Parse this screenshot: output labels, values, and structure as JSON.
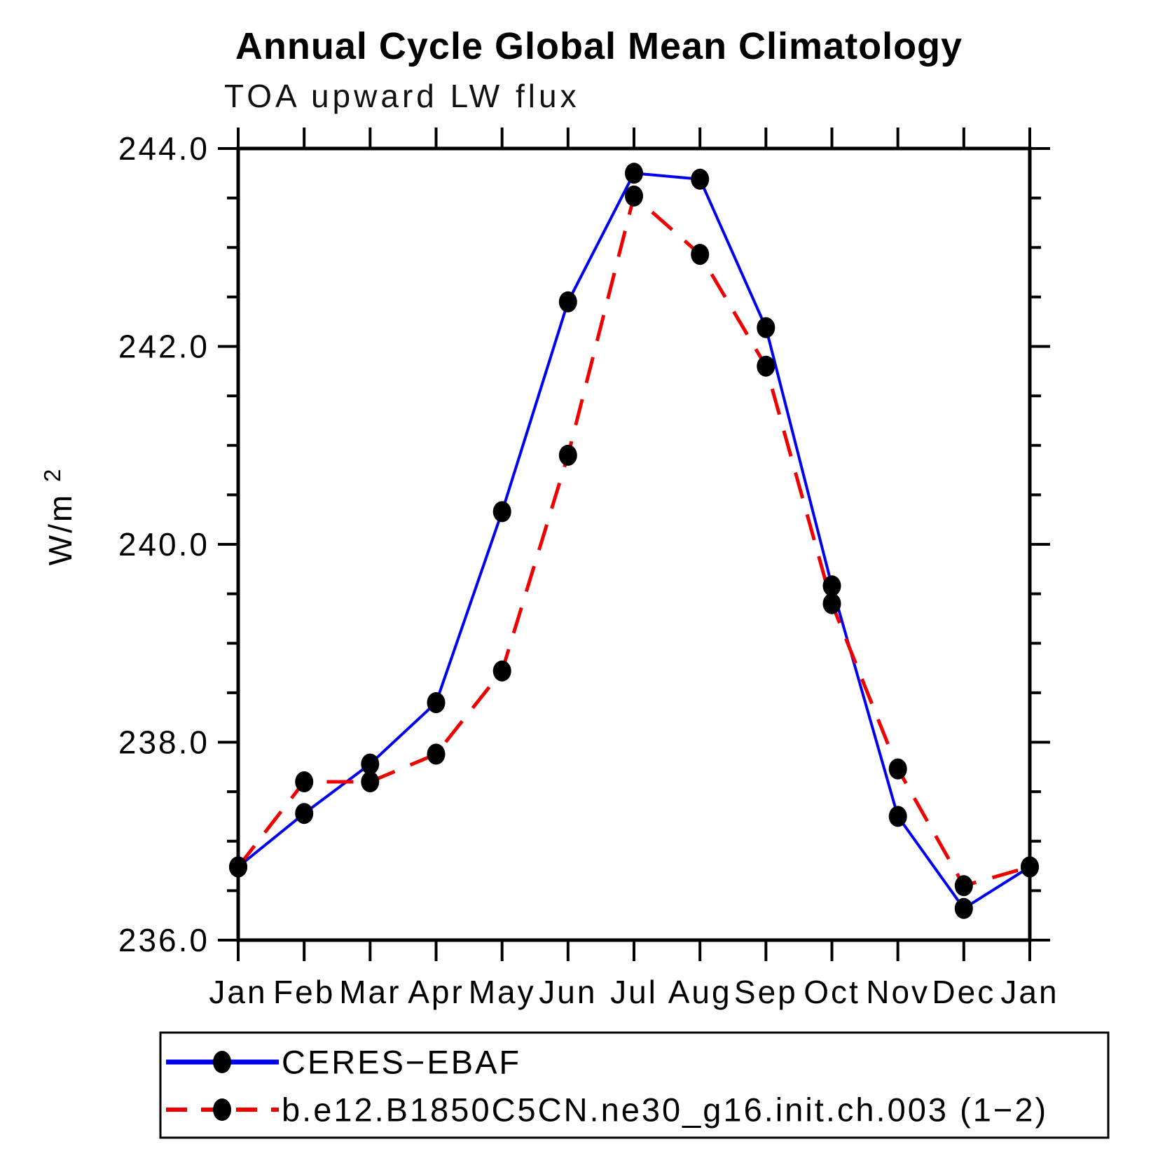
{
  "chart_data": {
    "type": "line",
    "title": "Annual Cycle Global Mean Climatology",
    "subtitle": "TOA upward LW flux",
    "ylabel_base": "W/m",
    "ylabel_exponent": "2",
    "categories": [
      "Jan",
      "Feb",
      "Mar",
      "Apr",
      "May",
      "Jun",
      "Jul",
      "Aug",
      "Sep",
      "Oct",
      "Nov",
      "Dec",
      "Jan"
    ],
    "ylim": [
      236.0,
      244.0
    ],
    "ytick_major_interval": 2.0,
    "ytick_minor_interval": 0.5,
    "ytick_labels": [
      "236.0",
      "238.0",
      "240.0",
      "242.0",
      "244.0"
    ],
    "grid": false,
    "legend_position": "bottom-left",
    "axis_color": "#000000",
    "marker_color": "#000000",
    "series": [
      {
        "name": "CERES−EBAF",
        "color": "#0000ee",
        "style": "solid",
        "values": [
          236.74,
          237.28,
          237.78,
          238.4,
          240.33,
          242.45,
          243.75,
          243.69,
          242.19,
          239.58,
          237.25,
          236.32,
          236.74
        ]
      },
      {
        "name": "b.e12.B1850C5CN.ne30_g16.init.ch.003 (1−2)",
        "color": "#ee0000",
        "style": "dashed",
        "values": [
          236.74,
          237.6,
          237.6,
          237.88,
          238.72,
          240.9,
          243.52,
          242.93,
          241.8,
          239.4,
          237.73,
          236.55,
          236.74
        ]
      }
    ]
  }
}
